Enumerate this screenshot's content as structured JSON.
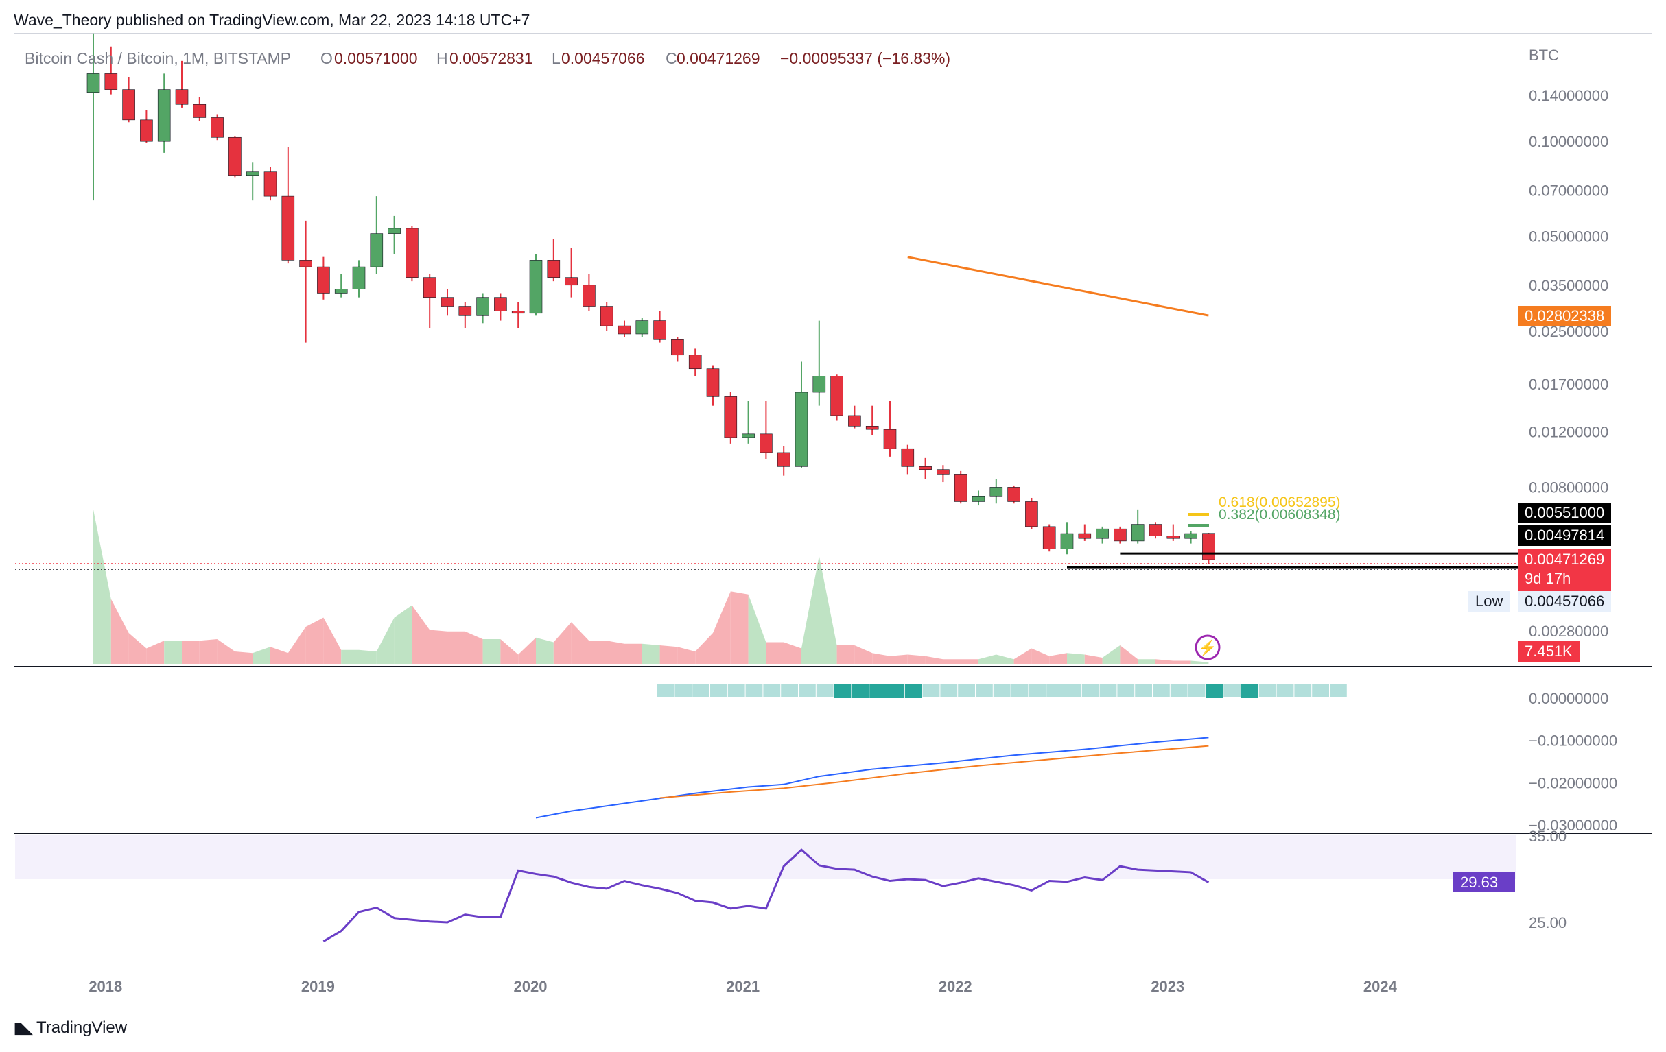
{
  "publisher": "Wave_Theory published on TradingView.com, Mar 22, 2023 14:18 UTC+7",
  "brand": "TradingView",
  "legend": {
    "symbol": "Bitcoin Cash / Bitcoin, 1M, BITSTAMP",
    "o_label": "O",
    "o_value": "0.00571000",
    "h_label": "H",
    "h_value": "0.00572831",
    "l_label": "L",
    "l_value": "0.00457066",
    "c_label": "C",
    "c_value": "0.00471269",
    "change": "−0.00095337 (−16.83%)"
  },
  "colors": {
    "up": "#53a565",
    "down": "#e5323e",
    "up_vol": "#bfe3c4",
    "down_vol": "#f7b1b5",
    "ma_orange": "#f57c1f",
    "rsi": "#6a3ec7",
    "macd_blue": "#2962ff",
    "macd_orange": "#f57c1f",
    "hist_light": "#b2dfdb",
    "hist_dark": "#26a69a"
  },
  "chart_data": [
    {
      "type": "candlestick",
      "pair": "Bitcoin Cash / Bitcoin",
      "interval": "1M",
      "exchange": "BITSTAMP",
      "y_unit": "BTC",
      "y_scale": "log",
      "y_ticks": [
        "0.14000000",
        "0.10000000",
        "0.07000000",
        "0.05000000",
        "0.03500000",
        "0.02500000",
        "0.01700000",
        "0.01200000",
        "0.00800000",
        "0.00280000"
      ],
      "x_ticks": [
        "2018",
        "2019",
        "2020",
        "2021",
        "2022",
        "2023",
        "2024"
      ],
      "price_labels": {
        "ma": "0.02802338",
        "level_a": "0.00551000",
        "level_b": "0.00497814",
        "last": "0.00471269",
        "countdown": "9d 17h",
        "low_label": "Low",
        "low": "0.00457066",
        "volume": "7.451K"
      },
      "fib_labels": [
        "0.618(0.00652895)",
        "0.382(0.00608348)"
      ],
      "candles": [
        {
          "date": "2017-12",
          "o": 0.143,
          "h": 0.22,
          "l": 0.065,
          "c": 0.164
        },
        {
          "date": "2018-01",
          "o": 0.164,
          "h": 0.2,
          "l": 0.141,
          "c": 0.146
        },
        {
          "date": "2018-02",
          "o": 0.146,
          "h": 0.16,
          "l": 0.115,
          "c": 0.117
        },
        {
          "date": "2018-03",
          "o": 0.117,
          "h": 0.126,
          "l": 0.099,
          "c": 0.1
        },
        {
          "date": "2018-04",
          "o": 0.1,
          "h": 0.164,
          "l": 0.092,
          "c": 0.146
        },
        {
          "date": "2018-05",
          "o": 0.146,
          "h": 0.18,
          "l": 0.128,
          "c": 0.131
        },
        {
          "date": "2018-06",
          "o": 0.131,
          "h": 0.138,
          "l": 0.116,
          "c": 0.119
        },
        {
          "date": "2018-07",
          "o": 0.119,
          "h": 0.122,
          "l": 0.101,
          "c": 0.103
        },
        {
          "date": "2018-08",
          "o": 0.103,
          "h": 0.104,
          "l": 0.077,
          "c": 0.078
        },
        {
          "date": "2018-09",
          "o": 0.078,
          "h": 0.086,
          "l": 0.065,
          "c": 0.08
        },
        {
          "date": "2018-10",
          "o": 0.08,
          "h": 0.083,
          "l": 0.065,
          "c": 0.067
        },
        {
          "date": "2018-11",
          "o": 0.067,
          "h": 0.096,
          "l": 0.041,
          "c": 0.042
        },
        {
          "date": "2018-12",
          "o": 0.042,
          "h": 0.056,
          "l": 0.023,
          "c": 0.04
        },
        {
          "date": "2019-01",
          "o": 0.04,
          "h": 0.043,
          "l": 0.0315,
          "c": 0.033
        },
        {
          "date": "2019-02",
          "o": 0.033,
          "h": 0.038,
          "l": 0.032,
          "c": 0.034
        },
        {
          "date": "2019-03",
          "o": 0.034,
          "h": 0.042,
          "l": 0.032,
          "c": 0.04
        },
        {
          "date": "2019-04",
          "o": 0.04,
          "h": 0.067,
          "l": 0.038,
          "c": 0.051
        },
        {
          "date": "2019-05",
          "o": 0.051,
          "h": 0.058,
          "l": 0.044,
          "c": 0.053
        },
        {
          "date": "2019-06",
          "o": 0.053,
          "h": 0.054,
          "l": 0.036,
          "c": 0.037
        },
        {
          "date": "2019-07",
          "o": 0.037,
          "h": 0.038,
          "l": 0.0255,
          "c": 0.032
        },
        {
          "date": "2019-08",
          "o": 0.032,
          "h": 0.034,
          "l": 0.028,
          "c": 0.03
        },
        {
          "date": "2019-09",
          "o": 0.03,
          "h": 0.031,
          "l": 0.0255,
          "c": 0.028
        },
        {
          "date": "2019-10",
          "o": 0.028,
          "h": 0.033,
          "l": 0.0265,
          "c": 0.032
        },
        {
          "date": "2019-11",
          "o": 0.032,
          "h": 0.033,
          "l": 0.027,
          "c": 0.029
        },
        {
          "date": "2019-12",
          "o": 0.029,
          "h": 0.031,
          "l": 0.0255,
          "c": 0.0285
        },
        {
          "date": "2020-01",
          "o": 0.0285,
          "h": 0.044,
          "l": 0.028,
          "c": 0.042
        },
        {
          "date": "2020-02",
          "o": 0.042,
          "h": 0.049,
          "l": 0.036,
          "c": 0.037
        },
        {
          "date": "2020-03",
          "o": 0.037,
          "h": 0.046,
          "l": 0.032,
          "c": 0.035
        },
        {
          "date": "2020-04",
          "o": 0.035,
          "h": 0.038,
          "l": 0.029,
          "c": 0.03
        },
        {
          "date": "2020-05",
          "o": 0.03,
          "h": 0.031,
          "l": 0.025,
          "c": 0.026
        },
        {
          "date": "2020-06",
          "o": 0.026,
          "h": 0.027,
          "l": 0.024,
          "c": 0.0245
        },
        {
          "date": "2020-07",
          "o": 0.0245,
          "h": 0.0275,
          "l": 0.024,
          "c": 0.027
        },
        {
          "date": "2020-08",
          "o": 0.027,
          "h": 0.029,
          "l": 0.023,
          "c": 0.0235
        },
        {
          "date": "2020-09",
          "o": 0.0235,
          "h": 0.024,
          "l": 0.02,
          "c": 0.021
        },
        {
          "date": "2020-10",
          "o": 0.021,
          "h": 0.022,
          "l": 0.018,
          "c": 0.019
        },
        {
          "date": "2020-11",
          "o": 0.019,
          "h": 0.0195,
          "l": 0.0145,
          "c": 0.0155
        },
        {
          "date": "2020-12",
          "o": 0.0155,
          "h": 0.016,
          "l": 0.011,
          "c": 0.0115
        },
        {
          "date": "2021-01",
          "o": 0.0115,
          "h": 0.015,
          "l": 0.011,
          "c": 0.0118
        },
        {
          "date": "2021-02",
          "o": 0.0118,
          "h": 0.015,
          "l": 0.0098,
          "c": 0.0103
        },
        {
          "date": "2021-03",
          "o": 0.0103,
          "h": 0.0108,
          "l": 0.0087,
          "c": 0.0093
        },
        {
          "date": "2021-04",
          "o": 0.0093,
          "h": 0.02,
          "l": 0.0092,
          "c": 0.016
        },
        {
          "date": "2021-05",
          "o": 0.016,
          "h": 0.027,
          "l": 0.0145,
          "c": 0.018
        },
        {
          "date": "2021-06",
          "o": 0.018,
          "h": 0.0182,
          "l": 0.013,
          "c": 0.0135
        },
        {
          "date": "2021-07",
          "o": 0.0135,
          "h": 0.0145,
          "l": 0.0123,
          "c": 0.0125
        },
        {
          "date": "2021-08",
          "o": 0.0125,
          "h": 0.0145,
          "l": 0.0117,
          "c": 0.0122
        },
        {
          "date": "2021-09",
          "o": 0.0122,
          "h": 0.015,
          "l": 0.01,
          "c": 0.0106
        },
        {
          "date": "2021-10",
          "o": 0.0106,
          "h": 0.0109,
          "l": 0.0088,
          "c": 0.0093
        },
        {
          "date": "2021-11",
          "o": 0.0093,
          "h": 0.0099,
          "l": 0.0085,
          "c": 0.0091
        },
        {
          "date": "2021-12",
          "o": 0.0091,
          "h": 0.0094,
          "l": 0.0083,
          "c": 0.0088
        },
        {
          "date": "2022-01",
          "o": 0.0088,
          "h": 0.009,
          "l": 0.0071,
          "c": 0.0072
        },
        {
          "date": "2022-02",
          "o": 0.0072,
          "h": 0.0078,
          "l": 0.007,
          "c": 0.0075
        },
        {
          "date": "2022-03",
          "o": 0.0075,
          "h": 0.0085,
          "l": 0.0071,
          "c": 0.008
        },
        {
          "date": "2022-04",
          "o": 0.008,
          "h": 0.0081,
          "l": 0.0071,
          "c": 0.0072
        },
        {
          "date": "2022-05",
          "o": 0.0072,
          "h": 0.0074,
          "l": 0.0059,
          "c": 0.006
        },
        {
          "date": "2022-06",
          "o": 0.006,
          "h": 0.0061,
          "l": 0.005,
          "c": 0.0051
        },
        {
          "date": "2022-07",
          "o": 0.0051,
          "h": 0.0062,
          "l": 0.0049,
          "c": 0.0057
        },
        {
          "date": "2022-08",
          "o": 0.0057,
          "h": 0.0061,
          "l": 0.0054,
          "c": 0.0055
        },
        {
          "date": "2022-09",
          "o": 0.0055,
          "h": 0.006,
          "l": 0.0053,
          "c": 0.0059
        },
        {
          "date": "2022-10",
          "o": 0.0059,
          "h": 0.006,
          "l": 0.0053,
          "c": 0.0054
        },
        {
          "date": "2022-11",
          "o": 0.0054,
          "h": 0.0068,
          "l": 0.0053,
          "c": 0.0061
        },
        {
          "date": "2022-12",
          "o": 0.0061,
          "h": 0.0062,
          "l": 0.0055,
          "c": 0.0056
        },
        {
          "date": "2023-01",
          "o": 0.0056,
          "h": 0.0061,
          "l": 0.0054,
          "c": 0.0055
        },
        {
          "date": "2023-02",
          "o": 0.0055,
          "h": 0.0058,
          "l": 0.0053,
          "c": 0.0057
        },
        {
          "date": "2023-03",
          "o": 0.00571,
          "h": 0.00572831,
          "l": 0.00457066,
          "c": 0.00471269
        }
      ],
      "ma_line": [
        {
          "date": "2021-10",
          "v": 0.043
        },
        {
          "date": "2023-03",
          "v": 0.02802338
        }
      ],
      "volume_relative": [
        1.0,
        0.42,
        0.2,
        0.1,
        0.15,
        0.15,
        0.15,
        0.16,
        0.08,
        0.07,
        0.11,
        0.07,
        0.24,
        0.3,
        0.09,
        0.09,
        0.08,
        0.3,
        0.38,
        0.22,
        0.21,
        0.21,
        0.16,
        0.16,
        0.06,
        0.17,
        0.14,
        0.27,
        0.15,
        0.15,
        0.13,
        0.13,
        0.12,
        0.11,
        0.08,
        0.2,
        0.47,
        0.45,
        0.14,
        0.14,
        0.1,
        0.7,
        0.12,
        0.12,
        0.07,
        0.05,
        0.06,
        0.05,
        0.03,
        0.03,
        0.03,
        0.06,
        0.03,
        0.1,
        0.05,
        0.07,
        0.06,
        0.04,
        0.12,
        0.03,
        0.03,
        0.02,
        0.02,
        0.01
      ]
    },
    {
      "type": "line",
      "indicator": "MACD",
      "y_ticks": [
        "0.00000000",
        "−0.01000000",
        "−0.02000000",
        "−0.03000000"
      ],
      "macd": [
        {
          "date": "2020-01",
          "v": -0.0283
        },
        {
          "date": "2020-03",
          "v": -0.0267
        },
        {
          "date": "2020-06",
          "v": -0.0249
        },
        {
          "date": "2020-10",
          "v": -0.0225
        },
        {
          "date": "2021-01",
          "v": -0.021
        },
        {
          "date": "2021-03",
          "v": -0.0204
        },
        {
          "date": "2021-05",
          "v": -0.0185
        },
        {
          "date": "2021-08",
          "v": -0.0168
        },
        {
          "date": "2021-12",
          "v": -0.0153
        },
        {
          "date": "2022-04",
          "v": -0.0135
        },
        {
          "date": "2022-08",
          "v": -0.0121
        },
        {
          "date": "2022-12",
          "v": -0.0104
        },
        {
          "date": "2023-03",
          "v": -0.0093
        }
      ],
      "signal": [
        {
          "date": "2020-08",
          "v": -0.0236
        },
        {
          "date": "2020-12",
          "v": -0.0222
        },
        {
          "date": "2021-03",
          "v": -0.0213
        },
        {
          "date": "2021-06",
          "v": -0.0199
        },
        {
          "date": "2021-10",
          "v": -0.0178
        },
        {
          "date": "2022-02",
          "v": -0.016
        },
        {
          "date": "2022-06",
          "v": -0.0145
        },
        {
          "date": "2022-10",
          "v": -0.013
        },
        {
          "date": "2023-03",
          "v": -0.0113
        }
      ],
      "histogram_strength": [
        0,
        0,
        0,
        0,
        0,
        0,
        0,
        0,
        0,
        0,
        1,
        2,
        2,
        2,
        1,
        0,
        0,
        0,
        0,
        0,
        0,
        0,
        0,
        0,
        0,
        0,
        0,
        0,
        0,
        0,
        0,
        1,
        0,
        1,
        0,
        0,
        0,
        0,
        0
      ]
    },
    {
      "type": "line",
      "indicator": "RSI",
      "y_ticks": [
        "35.00",
        "25.00"
      ],
      "value_label": "29.63",
      "series": [
        {
          "date": "2019-01",
          "v": 22.8
        },
        {
          "date": "2019-02",
          "v": 24.0
        },
        {
          "date": "2019-03",
          "v": 26.2
        },
        {
          "date": "2019-04",
          "v": 26.7
        },
        {
          "date": "2019-05",
          "v": 25.5
        },
        {
          "date": "2019-06",
          "v": 25.3
        },
        {
          "date": "2019-07",
          "v": 25.1
        },
        {
          "date": "2019-08",
          "v": 25.0
        },
        {
          "date": "2019-09",
          "v": 25.9
        },
        {
          "date": "2019-10",
          "v": 25.6
        },
        {
          "date": "2019-11",
          "v": 25.6
        },
        {
          "date": "2019-12",
          "v": 31.0
        },
        {
          "date": "2020-01",
          "v": 30.6
        },
        {
          "date": "2020-02",
          "v": 30.3
        },
        {
          "date": "2020-03",
          "v": 29.6
        },
        {
          "date": "2020-04",
          "v": 29.1
        },
        {
          "date": "2020-05",
          "v": 28.9
        },
        {
          "date": "2020-06",
          "v": 29.8
        },
        {
          "date": "2020-07",
          "v": 29.3
        },
        {
          "date": "2020-08",
          "v": 28.9
        },
        {
          "date": "2020-09",
          "v": 28.4
        },
        {
          "date": "2020-10",
          "v": 27.5
        },
        {
          "date": "2020-11",
          "v": 27.3
        },
        {
          "date": "2020-12",
          "v": 26.6
        },
        {
          "date": "2021-01",
          "v": 26.9
        },
        {
          "date": "2021-02",
          "v": 26.6
        },
        {
          "date": "2021-03",
          "v": 31.5
        },
        {
          "date": "2021-04",
          "v": 33.4
        },
        {
          "date": "2021-05",
          "v": 31.6
        },
        {
          "date": "2021-06",
          "v": 31.2
        },
        {
          "date": "2021-07",
          "v": 31.1
        },
        {
          "date": "2021-08",
          "v": 30.3
        },
        {
          "date": "2021-09",
          "v": 29.8
        },
        {
          "date": "2021-10",
          "v": 30.0
        },
        {
          "date": "2021-11",
          "v": 29.9
        },
        {
          "date": "2021-12",
          "v": 29.2
        },
        {
          "date": "2022-01",
          "v": 29.6
        },
        {
          "date": "2022-02",
          "v": 30.1
        },
        {
          "date": "2022-03",
          "v": 29.7
        },
        {
          "date": "2022-04",
          "v": 29.3
        },
        {
          "date": "2022-05",
          "v": 28.7
        },
        {
          "date": "2022-06",
          "v": 29.8
        },
        {
          "date": "2022-07",
          "v": 29.7
        },
        {
          "date": "2022-08",
          "v": 30.2
        },
        {
          "date": "2022-09",
          "v": 29.9
        },
        {
          "date": "2022-10",
          "v": 31.5
        },
        {
          "date": "2022-11",
          "v": 31.1
        },
        {
          "date": "2022-12",
          "v": 31.0
        },
        {
          "date": "2023-01",
          "v": 30.9
        },
        {
          "date": "2023-02",
          "v": 30.8
        },
        {
          "date": "2023-03",
          "v": 29.63
        }
      ]
    }
  ]
}
